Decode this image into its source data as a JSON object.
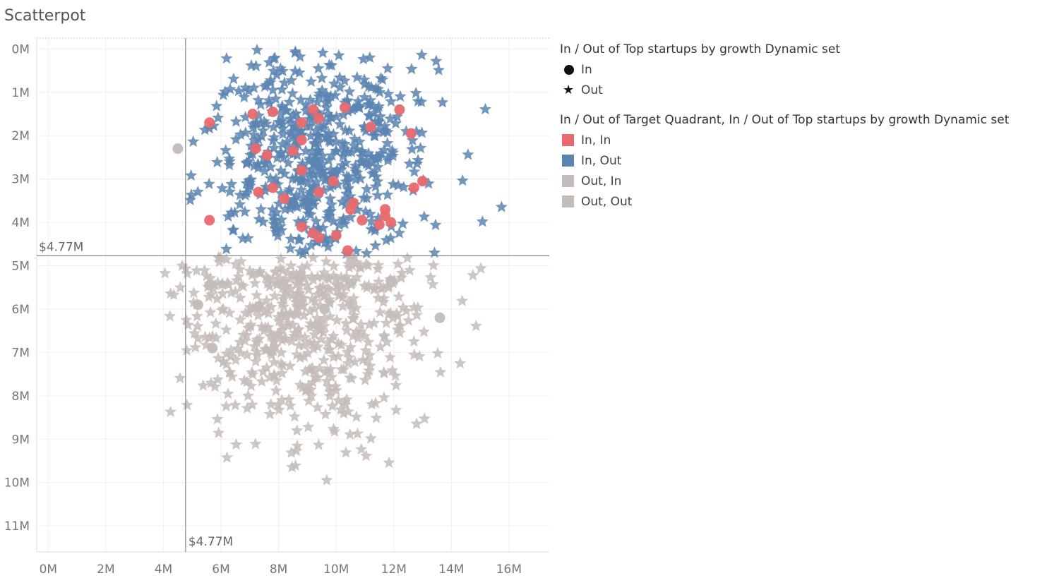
{
  "page": {
    "title": "Scatterpot"
  },
  "chart_data": {
    "type": "scatter",
    "title": "Scatterpot",
    "xlabel": "",
    "ylabel": "",
    "x_axis": {
      "range": [
        -0.4,
        17.4
      ],
      "reversed": false,
      "ticks": [
        0,
        2,
        4,
        6,
        8,
        10,
        12,
        14,
        16
      ],
      "tick_labels": [
        "0M",
        "2M",
        "4M",
        "6M",
        "8M",
        "10M",
        "12M",
        "14M",
        "16M"
      ]
    },
    "y_axis": {
      "range": [
        -0.25,
        11.6
      ],
      "reversed": true,
      "ticks": [
        0,
        1,
        2,
        3,
        4,
        5,
        6,
        7,
        8,
        9,
        10,
        11
      ],
      "tick_labels": [
        "0M",
        "1M",
        "2M",
        "3M",
        "4M",
        "5M",
        "6M",
        "7M",
        "8M",
        "9M",
        "10M",
        "11M"
      ]
    },
    "grid": true,
    "reference_lines": [
      {
        "axis": "x",
        "value": 4.77,
        "label": "$4.77M"
      },
      {
        "axis": "y",
        "value": 4.77,
        "label": "$4.77M"
      }
    ],
    "legend_shape": {
      "title": "In / Out of Top startups by growth Dynamic set",
      "items": [
        {
          "label": "In",
          "shape": "circle"
        },
        {
          "label": "Out",
          "shape": "star"
        }
      ]
    },
    "legend_color": {
      "title": "In / Out of Target Quadrant, In / Out of Top startups by growth Dynamic set",
      "items": [
        {
          "label": "In, In",
          "color": "#e8696e"
        },
        {
          "label": "In, Out",
          "color": "#5b84b1"
        },
        {
          "label": "Out, In",
          "color": "#c4bcb8"
        },
        {
          "label": "Out, Out",
          "color": "#c4bcb8"
        }
      ]
    },
    "series": [
      {
        "name": "In, In",
        "shape": "circle",
        "color": "#e8696e",
        "points": [
          [
            5.6,
            1.7
          ],
          [
            7.1,
            1.5
          ],
          [
            7.8,
            1.45
          ],
          [
            8.8,
            1.7
          ],
          [
            9.2,
            1.4
          ],
          [
            9.4,
            1.6
          ],
          [
            10.3,
            1.35
          ],
          [
            11.2,
            1.8
          ],
          [
            12.2,
            1.4
          ],
          [
            12.6,
            1.95
          ],
          [
            7.2,
            2.3
          ],
          [
            7.6,
            2.45
          ],
          [
            8.5,
            2.35
          ],
          [
            8.8,
            2.1
          ],
          [
            8.8,
            2.8
          ],
          [
            9.9,
            3.05
          ],
          [
            7.3,
            3.3
          ],
          [
            7.8,
            3.2
          ],
          [
            8.2,
            3.45
          ],
          [
            9.4,
            3.3
          ],
          [
            10.6,
            3.55
          ],
          [
            10.5,
            3.7
          ],
          [
            11.7,
            3.7
          ],
          [
            11.7,
            3.85
          ],
          [
            12.7,
            3.2
          ],
          [
            13.0,
            3.05
          ],
          [
            5.6,
            3.95
          ],
          [
            8.8,
            4.1
          ],
          [
            9.2,
            4.25
          ],
          [
            9.4,
            4.35
          ],
          [
            10.0,
            4.3
          ],
          [
            10.9,
            3.95
          ],
          [
            11.5,
            4.05
          ],
          [
            11.9,
            4.0
          ],
          [
            10.4,
            4.65
          ]
        ]
      },
      {
        "name": "Out, In",
        "shape": "circle",
        "color": "#c4bcb8",
        "points": [
          [
            4.5,
            2.3
          ],
          [
            5.6,
            5.45
          ],
          [
            5.2,
            5.9
          ],
          [
            5.7,
            6.9
          ],
          [
            7.3,
            5.95
          ],
          [
            9.6,
            6.0
          ],
          [
            11.9,
            5.35
          ],
          [
            13.6,
            6.2
          ]
        ]
      }
    ],
    "clouds": [
      {
        "name": "In, Out",
        "shape": "star",
        "color": "#5b84b1",
        "count": 560,
        "x_mean": 9.3,
        "x_std": 2.0,
        "y_mean": 2.6,
        "y_std": 1.35,
        "y_range": [
          0.0,
          4.74
        ],
        "x_min": 4.8
      },
      {
        "name": "Out, Out",
        "shape": "star",
        "color": "#c4bcb8",
        "count": 520,
        "x_mean": 8.9,
        "x_std": 2.1,
        "y_mean": 6.0,
        "y_std": 1.4,
        "y_range": [
          4.8,
          11.0
        ],
        "x_min": 1.5
      }
    ]
  }
}
